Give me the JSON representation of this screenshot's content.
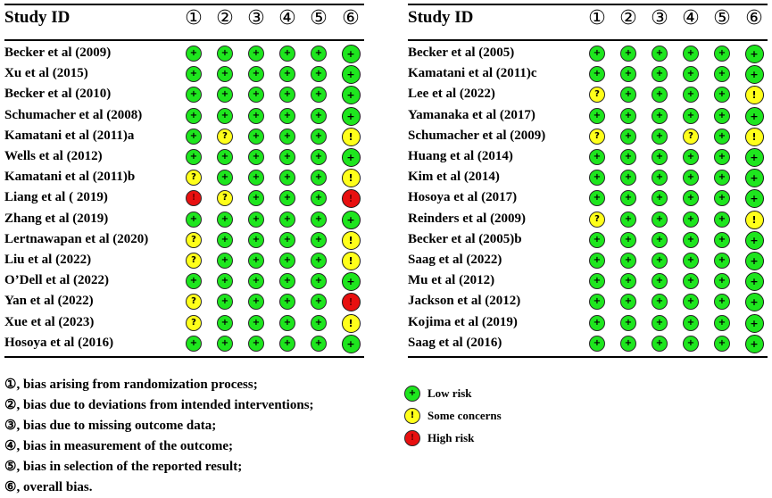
{
  "header": {
    "study_id_label": "Study ID",
    "domain_labels": [
      "①",
      "②",
      "③",
      "④",
      "⑤",
      "⑥"
    ]
  },
  "symbols": {
    "low": "+",
    "some": "?",
    "some_overall": "!",
    "high": "!"
  },
  "colors": {
    "low": "#1ee61e",
    "some": "#ffff1a",
    "high": "#e81010"
  },
  "left_table": {
    "studies": [
      {
        "id": "Becker et al (2009)",
        "r": [
          "low",
          "low",
          "low",
          "low",
          "low",
          "low"
        ]
      },
      {
        "id": "Xu et al (2015)",
        "r": [
          "low",
          "low",
          "low",
          "low",
          "low",
          "low"
        ]
      },
      {
        "id": "Becker et al (2010)",
        "r": [
          "low",
          "low",
          "low",
          "low",
          "low",
          "low"
        ]
      },
      {
        "id": "Schumacher  et al (2008)",
        "r": [
          "low",
          "low",
          "low",
          "low",
          "low",
          "low"
        ]
      },
      {
        "id": "Kamatani et al (2011)a",
        "r": [
          "low",
          "some",
          "low",
          "low",
          "low",
          "some"
        ]
      },
      {
        "id": "Wells et al (2012)",
        "r": [
          "low",
          "low",
          "low",
          "low",
          "low",
          "low"
        ]
      },
      {
        "id": "Kamatani et al (2011)b",
        "r": [
          "some",
          "low",
          "low",
          "low",
          "low",
          "some"
        ]
      },
      {
        "id": "Liang et al ( 2019)",
        "r": [
          "high",
          "some",
          "low",
          "low",
          "low",
          "high"
        ]
      },
      {
        "id": "Zhang et al (2019)",
        "r": [
          "low",
          "low",
          "low",
          "low",
          "low",
          "low"
        ]
      },
      {
        "id": "Lertnawapan et al (2020)",
        "r": [
          "some",
          "low",
          "low",
          "low",
          "low",
          "some"
        ]
      },
      {
        "id": "Liu et al (2022)",
        "r": [
          "some",
          "low",
          "low",
          "low",
          "low",
          "some"
        ]
      },
      {
        "id": "O’Dell et al (2022)",
        "r": [
          "low",
          "low",
          "low",
          "low",
          "low",
          "low"
        ]
      },
      {
        "id": "Yan  et al (2022)",
        "r": [
          "some",
          "low",
          "low",
          "low",
          "low",
          "high"
        ]
      },
      {
        "id": "Xue et al (2023)",
        "r": [
          "some",
          "low",
          "low",
          "low",
          "low",
          "some"
        ]
      },
      {
        "id": "Hosoya et al (2016)",
        "r": [
          "low",
          "low",
          "low",
          "low",
          "low",
          "low"
        ]
      }
    ]
  },
  "right_table": {
    "studies": [
      {
        "id": "Becker et al (2005)",
        "r": [
          "low",
          "low",
          "low",
          "low",
          "low",
          "low"
        ]
      },
      {
        "id": "Kamatani et al (2011)c",
        "r": [
          "low",
          "low",
          "low",
          "low",
          "low",
          "low"
        ]
      },
      {
        "id": "Lee et al (2022)",
        "r": [
          "some",
          "low",
          "low",
          "low",
          "low",
          "some"
        ]
      },
      {
        "id": "Yamanaka et al (2017)",
        "r": [
          "low",
          "low",
          "low",
          "low",
          "low",
          "low"
        ]
      },
      {
        "id": "Schumacher et al (2009)",
        "r": [
          "some",
          "low",
          "low",
          "some",
          "low",
          "some"
        ]
      },
      {
        "id": "Huang et al (2014)",
        "r": [
          "low",
          "low",
          "low",
          "low",
          "low",
          "low"
        ]
      },
      {
        "id": "Kim et al (2014)",
        "r": [
          "low",
          "low",
          "low",
          "low",
          "low",
          "low"
        ]
      },
      {
        "id": "Hosoya et al (2017)",
        "r": [
          "low",
          "low",
          "low",
          "low",
          "low",
          "low"
        ]
      },
      {
        "id": "Reinders et al (2009)",
        "r": [
          "some",
          "low",
          "low",
          "low",
          "low",
          "some"
        ]
      },
      {
        "id": "Becker et al (2005)b",
        "r": [
          "low",
          "low",
          "low",
          "low",
          "low",
          "low"
        ]
      },
      {
        "id": "Saag et al (2022)",
        "r": [
          "low",
          "low",
          "low",
          "low",
          "low",
          "low"
        ]
      },
      {
        "id": "Mu et al (2012)",
        "r": [
          "low",
          "low",
          "low",
          "low",
          "low",
          "low"
        ]
      },
      {
        "id": "Jackson et al (2012)",
        "r": [
          "low",
          "low",
          "low",
          "low",
          "low",
          "low"
        ]
      },
      {
        "id": "Kojima et al (2019)",
        "r": [
          "low",
          "low",
          "low",
          "low",
          "low",
          "low"
        ]
      },
      {
        "id": "Saag et al (2016)",
        "r": [
          "low",
          "low",
          "low",
          "low",
          "low",
          "low"
        ]
      }
    ]
  },
  "domain_legend": [
    "①, bias arising from randomization process;",
    "②, bias due to deviations from intended interventions;",
    "③, bias due to missing outcome data;",
    "④, bias in measurement of the outcome;",
    "⑤, bias in selection of the reported result;",
    "⑥, overall bias."
  ],
  "risk_legend": [
    {
      "key": "low",
      "label": "Low risk"
    },
    {
      "key": "some",
      "label": "Some concerns"
    },
    {
      "key": "high",
      "label": "High risk"
    }
  ]
}
